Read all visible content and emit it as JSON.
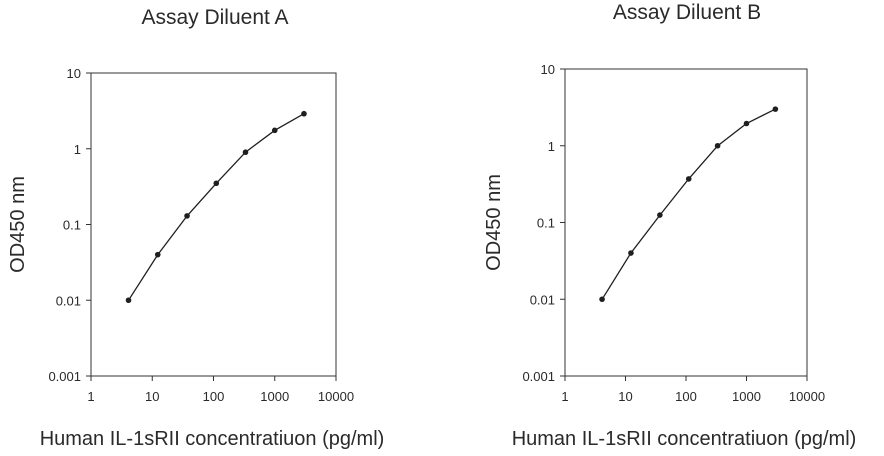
{
  "chart_data": [
    {
      "type": "line",
      "title": "Assay Diluent A",
      "xlabel": "Human IL-1sRII concentratiuon (pg/ml)",
      "ylabel": "OD450 nm",
      "xscale": "log",
      "yscale": "log",
      "xlim": [
        1,
        10000
      ],
      "ylim": [
        0.001,
        10
      ],
      "xticks": [
        "1",
        "10",
        "100",
        "1000",
        "10000"
      ],
      "yticks": [
        "10",
        "1",
        "0.1",
        "0.01",
        "0.001"
      ],
      "grid": false,
      "series": [
        {
          "x": [
            4.1,
            12.3,
            37,
            111,
            333,
            1000,
            3000
          ],
          "y": [
            0.01,
            0.04,
            0.13,
            0.35,
            0.9,
            1.75,
            2.9
          ]
        }
      ]
    },
    {
      "type": "line",
      "title": "Assay Diluent B",
      "xlabel": "Human IL-1sRII concentratiuon (pg/ml)",
      "ylabel": "OD450 nm",
      "xscale": "log",
      "yscale": "log",
      "xlim": [
        1,
        10000
      ],
      "ylim": [
        0.001,
        10
      ],
      "xticks": [
        "1",
        "10",
        "100",
        "1000",
        "10000"
      ],
      "yticks": [
        "10",
        "1",
        "0.1",
        "0.01",
        "0.001"
      ],
      "grid": false,
      "series": [
        {
          "x": [
            4.1,
            12.3,
            37,
            111,
            333,
            1000,
            3000
          ],
          "y": [
            0.01,
            0.04,
            0.125,
            0.37,
            1.0,
            1.95,
            3.0
          ]
        }
      ]
    }
  ]
}
